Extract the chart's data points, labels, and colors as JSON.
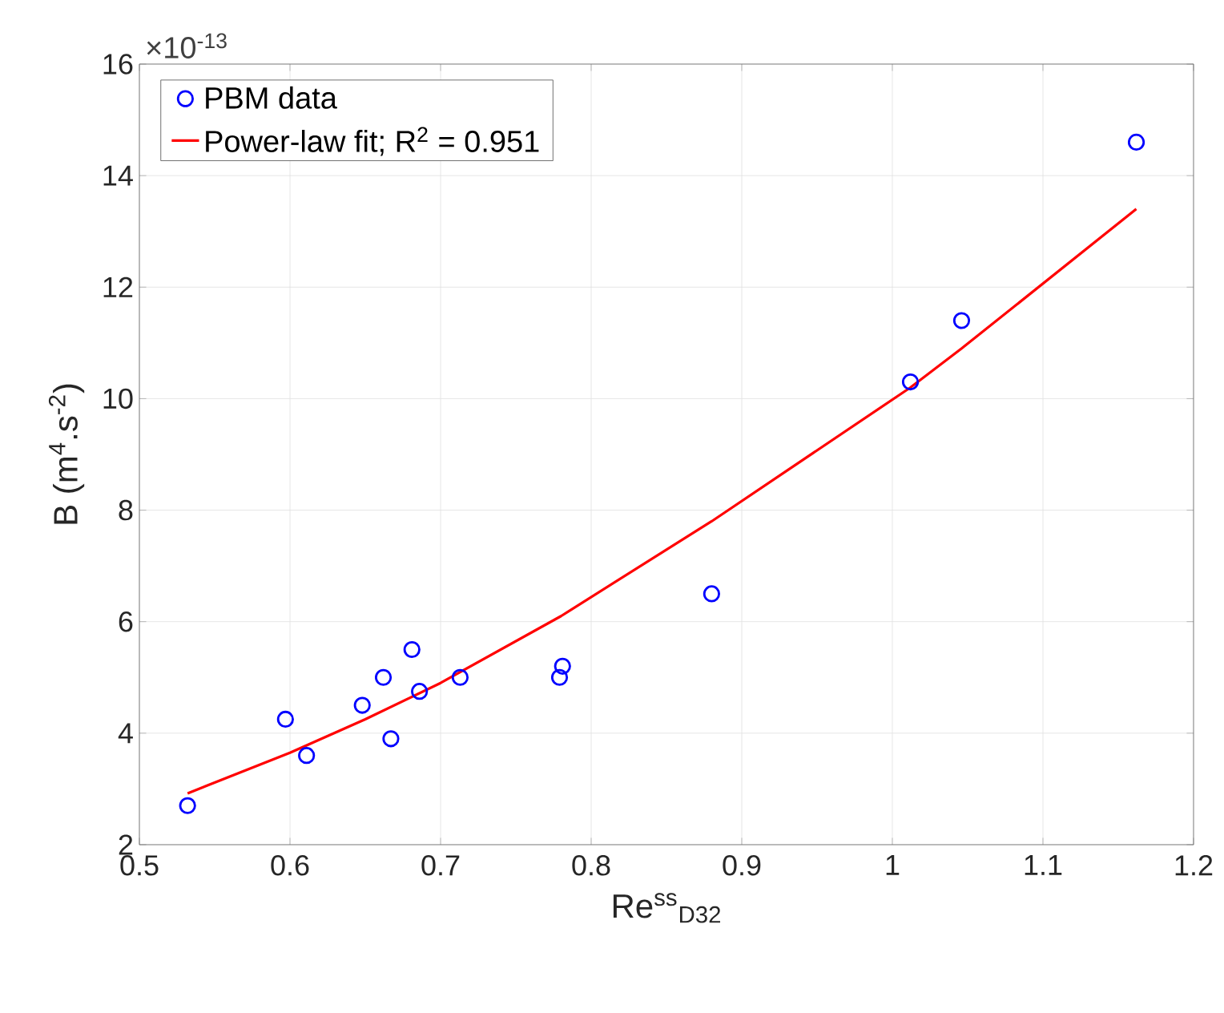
{
  "chart_data": {
    "type": "scatter",
    "xlabel": "Re$^{ss}$$_{D32}$",
    "ylabel": "B (m$^{4}$.s$^{-2}$)",
    "annotations": [
      "×10$^{-13}$"
    ],
    "xlim": [
      0.5,
      1.2
    ],
    "xticks": [
      0.5,
      0.6,
      0.7,
      0.8,
      0.9,
      1,
      1.1,
      1.2
    ],
    "ylim": [
      2,
      16
    ],
    "yticks": [
      2,
      4,
      6,
      8,
      10,
      12,
      14,
      16
    ],
    "grid": true,
    "legend": "top left",
    "series": [
      {
        "name": "PBM data",
        "marker": "circle",
        "color": "#0000ff",
        "x": [
          0.532,
          0.597,
          0.611,
          0.648,
          0.662,
          0.667,
          0.681,
          0.686,
          0.713,
          0.779,
          0.781,
          0.88,
          1.012,
          1.046,
          1.162
        ],
        "values": [
          2.7,
          4.25,
          3.6,
          4.5,
          5.0,
          3.9,
          5.5,
          4.75,
          5.0,
          5.0,
          5.2,
          6.5,
          10.3,
          11.4,
          14.6
        ]
      },
      {
        "name": "Power-law fit; R$^{2}$ = 0.951",
        "type": "line",
        "line_style": "solid",
        "color": "#ff0000",
        "x": [
          0.532,
          0.6,
          0.65,
          0.7,
          0.78,
          0.88,
          1.012,
          1.046,
          1.162
        ],
        "values": [
          2.92,
          3.65,
          4.25,
          4.9,
          6.1,
          7.8,
          10.2,
          10.9,
          13.4
        ]
      }
    ]
  }
}
